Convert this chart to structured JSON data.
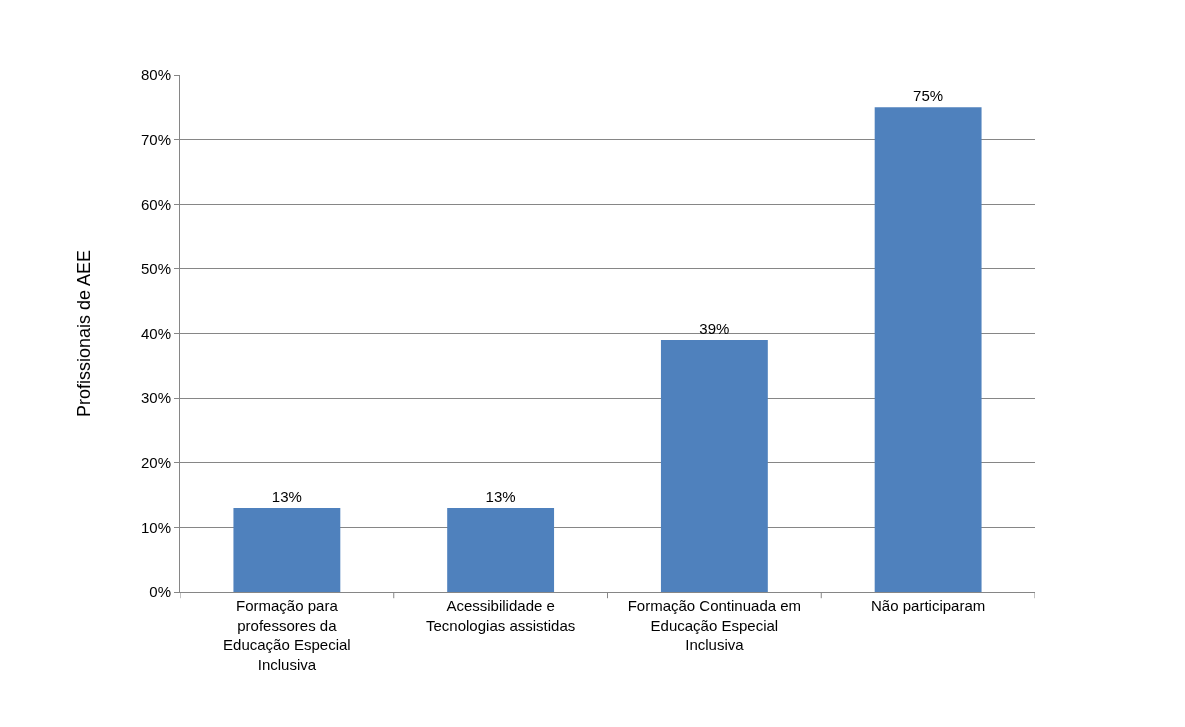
{
  "chart_data": {
    "type": "bar",
    "ylabel": "Profissionais de AEE",
    "categories": [
      "Formação para professores da Educação Especial Inclusiva",
      "Acessibilidade e Tecnologias assistidas",
      "Formação Continuada em Educação Especial Inclusiva",
      "Não participaram"
    ],
    "values": [
      13,
      13,
      39,
      75
    ],
    "value_labels": [
      "13%",
      "13%",
      "39%",
      "75%"
    ],
    "color": "#4f81bd",
    "ylim": [
      0,
      80
    ],
    "yticks": [
      {
        "value": 0,
        "label": "0%"
      },
      {
        "value": 10,
        "label": "10%"
      },
      {
        "value": 20,
        "label": "20%"
      },
      {
        "value": 30,
        "label": "30%"
      },
      {
        "value": 40,
        "label": "40%"
      },
      {
        "value": 50,
        "label": "50%"
      },
      {
        "value": 60,
        "label": "60%"
      },
      {
        "value": 70,
        "label": "70%"
      },
      {
        "value": 80,
        "label": "80%"
      }
    ],
    "grid": "y",
    "legend": false
  }
}
